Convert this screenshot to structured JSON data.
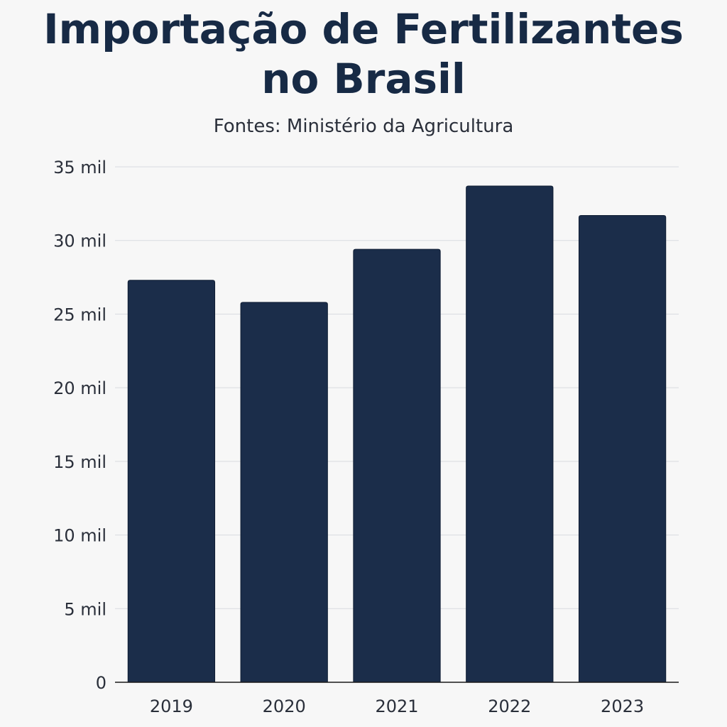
{
  "chart_data": {
    "type": "bar",
    "title_lines": [
      "Importação de Fertilizantes",
      "no Brasil"
    ],
    "subtitle": "Fontes: Ministério da Agricultura",
    "categories": [
      "2019",
      "2020",
      "2021",
      "2022",
      "2023"
    ],
    "values": [
      27300,
      25800,
      29400,
      33700,
      31700
    ],
    "ylim": [
      0,
      35000
    ],
    "yticks": [
      0,
      5000,
      10000,
      15000,
      20000,
      25000,
      30000,
      35000
    ],
    "ytick_labels": [
      "0",
      "5 mil",
      "10 mil",
      "15 mil",
      "20 mil",
      "25 mil",
      "30 mil",
      "35 mil"
    ],
    "grid": true,
    "bar_color": "#1b2d4a",
    "grid_color": "#d9dbe0",
    "axis_color": "#1a1a1a"
  }
}
